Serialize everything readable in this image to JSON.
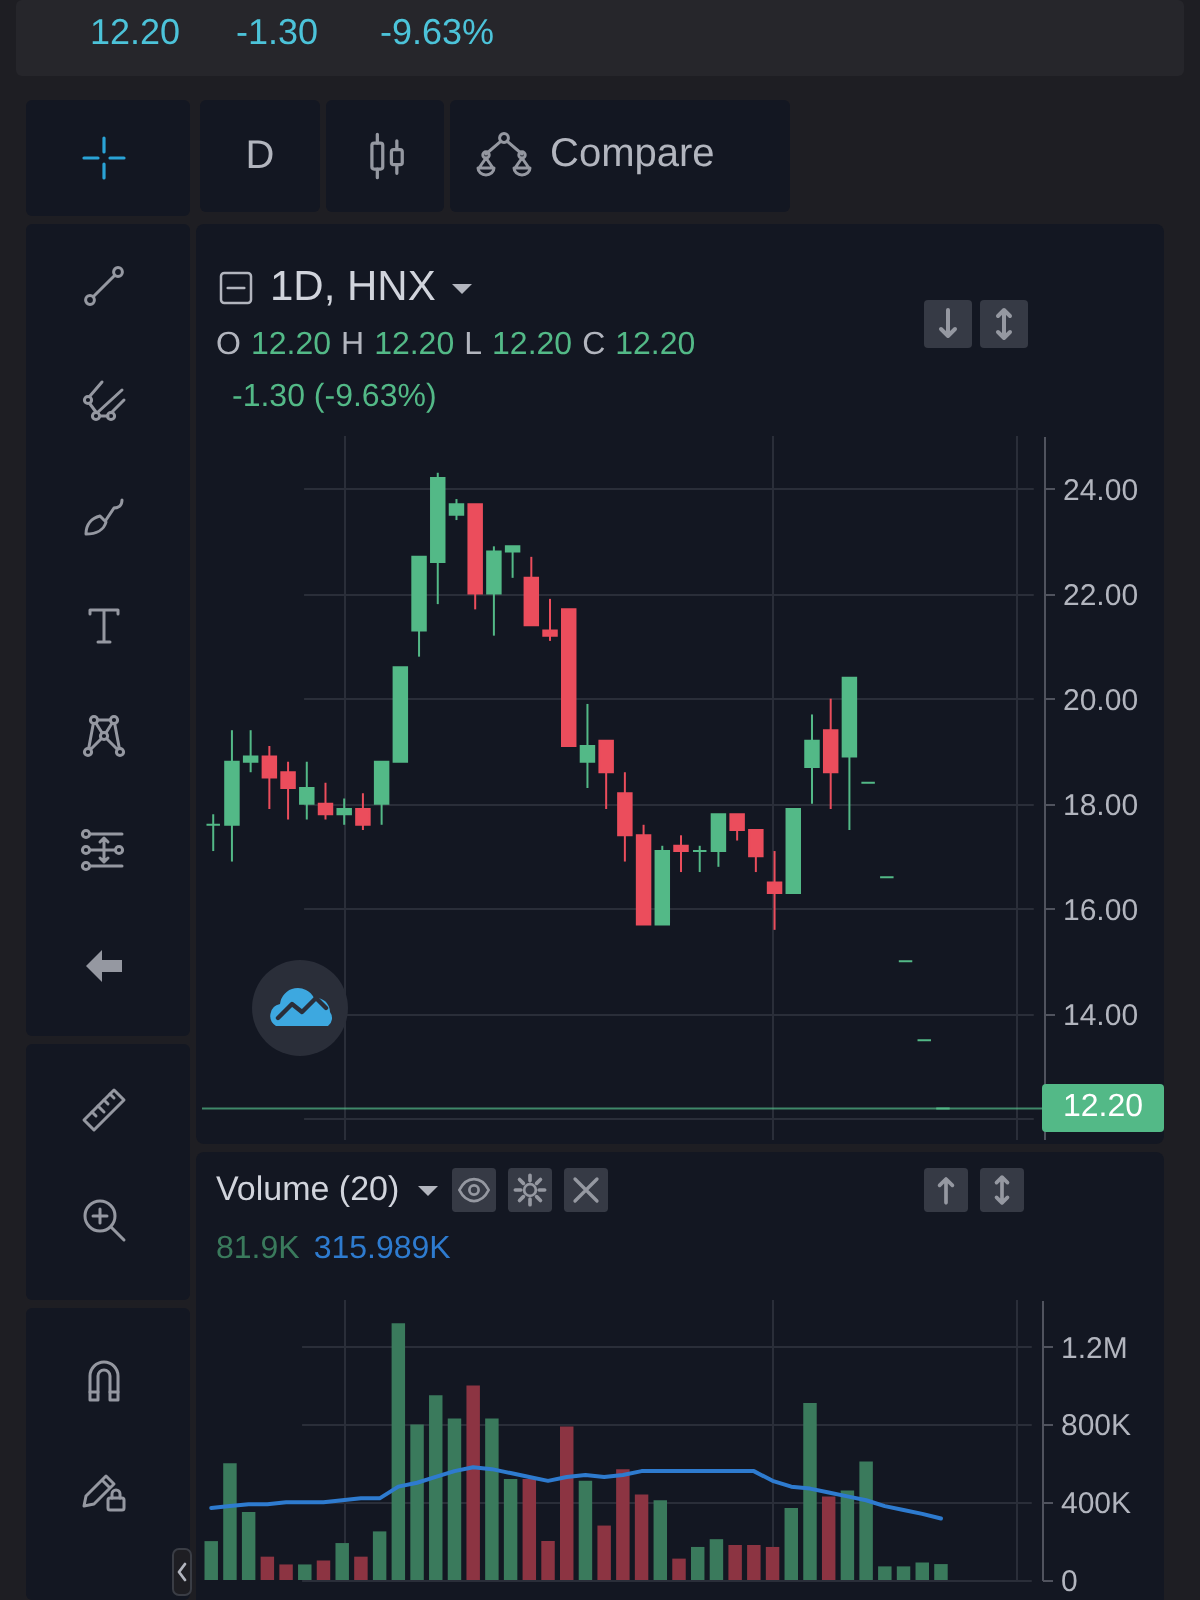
{
  "chart_data": [
    {
      "type": "other",
      "annotations": [
        "12.20",
        "-1.30",
        "-9.63%",
        "D",
        "Compare"
      ]
    },
    {
      "type": "candlestick",
      "title": "1D, HNX",
      "annotations": [
        "O 12.20 H 12.20 L 12.20 C 12.20",
        "-1.30 (-9.63%)"
      ],
      "categories": [
        null,
        null,
        null,
        null,
        null,
        null,
        null,
        null,
        null,
        null,
        null,
        null,
        null,
        null,
        null,
        null,
        null,
        null,
        null,
        null,
        null,
        null,
        null,
        null,
        null,
        null,
        null,
        null,
        null,
        null,
        null,
        null,
        null,
        null,
        null,
        null,
        null,
        null,
        null,
        null
      ],
      "ohlc": [
        [
          17.6,
          17.8,
          17.1,
          17.6
        ],
        [
          17.6,
          19.4,
          16.9,
          18.8
        ],
        [
          18.8,
          19.4,
          18.6,
          18.9
        ],
        [
          18.9,
          19.1,
          17.9,
          18.5
        ],
        [
          18.6,
          18.8,
          17.7,
          18.3
        ],
        [
          18.0,
          18.8,
          17.7,
          18.3
        ],
        [
          18.0,
          18.4,
          17.7,
          17.8
        ],
        [
          17.8,
          18.1,
          17.6,
          17.9
        ],
        [
          17.9,
          18.2,
          17.5,
          17.6
        ],
        [
          18.0,
          18.8,
          17.6,
          18.8
        ],
        [
          18.8,
          20.6,
          18.8,
          20.6
        ],
        [
          21.3,
          22.7,
          20.8,
          22.7
        ],
        [
          22.6,
          24.3,
          21.8,
          24.2
        ],
        [
          23.5,
          23.8,
          23.4,
          23.7
        ],
        [
          23.7,
          23.7,
          21.7,
          22.0
        ],
        [
          22.0,
          22.9,
          21.2,
          22.8
        ],
        [
          22.8,
          22.9,
          22.3,
          22.9
        ],
        [
          22.3,
          22.7,
          21.4,
          21.4
        ],
        [
          21.3,
          21.9,
          21.1,
          21.2
        ],
        [
          21.7,
          21.7,
          19.1,
          19.1
        ],
        [
          18.8,
          19.9,
          18.3,
          19.1
        ],
        [
          19.2,
          19.2,
          17.9,
          18.6
        ],
        [
          18.2,
          18.6,
          16.9,
          17.4
        ],
        [
          17.4,
          17.6,
          15.7,
          15.7
        ],
        [
          15.7,
          17.2,
          15.7,
          17.1
        ],
        [
          17.2,
          17.4,
          16.7,
          17.1
        ],
        [
          17.1,
          17.2,
          16.7,
          17.1
        ],
        [
          17.1,
          17.8,
          16.8,
          17.8
        ],
        [
          17.8,
          17.8,
          17.3,
          17.5
        ],
        [
          17.5,
          17.5,
          16.7,
          17.0
        ],
        [
          16.5,
          17.1,
          15.6,
          16.3
        ],
        [
          16.3,
          17.9,
          16.3,
          17.9
        ],
        [
          18.7,
          19.7,
          18.0,
          19.2
        ],
        [
          19.4,
          20.0,
          17.9,
          18.6
        ],
        [
          18.9,
          20.4,
          17.5,
          20.4
        ],
        [
          18.4,
          18.4,
          18.4,
          18.4
        ],
        [
          16.6,
          16.6,
          16.6,
          16.6
        ],
        [
          15.0,
          15.0,
          15.0,
          15.0
        ],
        [
          13.5,
          13.5,
          13.5,
          13.5
        ],
        [
          12.2,
          12.2,
          12.2,
          12.2
        ]
      ],
      "colors": [
        "#53b987",
        "#53b987",
        "#53b987",
        "#eb4d5c",
        "#eb4d5c",
        "#53b987",
        "#eb4d5c",
        "#53b987",
        "#eb4d5c",
        "#53b987",
        "#53b987",
        "#53b987",
        "#53b987",
        "#53b987",
        "#eb4d5c",
        "#53b987",
        "#53b987",
        "#eb4d5c",
        "#eb4d5c",
        "#eb4d5c",
        "#53b987",
        "#eb4d5c",
        "#eb4d5c",
        "#eb4d5c",
        "#53b987",
        "#eb4d5c",
        "#53b987",
        "#53b987",
        "#eb4d5c",
        "#eb4d5c",
        "#eb4d5c",
        "#53b987",
        "#53b987",
        "#eb4d5c",
        "#53b987",
        "#53b987",
        "#53b987",
        "#53b987",
        "#53b987",
        "#53b987"
      ],
      "ylim": [
        11.6,
        25.0
      ],
      "yticks": [
        {
          "value": 12,
          "label": null
        },
        {
          "value": 14,
          "label": "14.00"
        },
        {
          "value": 16,
          "label": "16.00"
        },
        {
          "value": 18,
          "label": "18.00"
        },
        {
          "value": 20,
          "label": "20.00"
        },
        {
          "value": 22,
          "label": "22.00"
        },
        {
          "value": 24,
          "label": "24.00"
        }
      ],
      "grid": true,
      "tick_labels": "y",
      "ref_lines": [
        {
          "axis": "y",
          "value": 12.2,
          "label": "12.20",
          "color": "#53b987"
        }
      ]
    },
    {
      "type": "bar",
      "title": "Volume (20)",
      "annotations": [
        "81.9K",
        "315.989K"
      ],
      "categories": [
        null,
        null,
        null,
        null,
        null,
        null,
        null,
        null,
        null,
        null,
        null,
        null,
        null,
        null,
        null,
        null,
        null,
        null,
        null,
        null,
        null,
        null,
        null,
        null,
        null,
        null,
        null,
        null,
        null,
        null,
        null,
        null,
        null,
        null,
        null,
        null,
        null,
        null,
        null,
        null
      ],
      "series": [
        {
          "colors": [
            "#3a7a5c",
            "#3a7a5c",
            "#3a7a5c",
            "#8c3442",
            "#8c3442",
            "#3a7a5c",
            "#8c3442",
            "#3a7a5c",
            "#8c3442",
            "#3a7a5c",
            "#3a7a5c",
            "#3a7a5c",
            "#3a7a5c",
            "#3a7a5c",
            "#8c3442",
            "#3a7a5c",
            "#3a7a5c",
            "#8c3442",
            "#8c3442",
            "#8c3442",
            "#3a7a5c",
            "#8c3442",
            "#8c3442",
            "#8c3442",
            "#3a7a5c",
            "#8c3442",
            "#3a7a5c",
            "#3a7a5c",
            "#8c3442",
            "#8c3442",
            "#8c3442",
            "#3a7a5c",
            "#3a7a5c",
            "#8c3442",
            "#3a7a5c",
            "#3a7a5c",
            "#3a7a5c",
            "#3a7a5c",
            "#3a7a5c",
            "#3a7a5c"
          ],
          "values": [
            200000,
            600000,
            350000,
            120000,
            80000,
            80000,
            100000,
            190000,
            120000,
            250000,
            1320000,
            800000,
            950000,
            830000,
            1000000,
            830000,
            520000,
            520000,
            200000,
            790000,
            510000,
            280000,
            570000,
            440000,
            410000,
            110000,
            170000,
            210000,
            180000,
            180000,
            170000,
            370000,
            910000,
            430000,
            460000,
            610000,
            70000,
            70000,
            90000,
            81900
          ]
        },
        {
          "type": "line",
          "color": "#2e7bcf",
          "values": [
            370000,
            380000,
            390000,
            390000,
            400000,
            400000,
            400000,
            410000,
            420000,
            420000,
            480000,
            500000,
            530000,
            560000,
            580000,
            570000,
            550000,
            530000,
            510000,
            530000,
            540000,
            530000,
            540000,
            560000,
            560000,
            560000,
            560000,
            560000,
            560000,
            560000,
            510000,
            480000,
            470000,
            450000,
            430000,
            410000,
            380000,
            360000,
            340000,
            315989
          ]
        }
      ],
      "ylim": [
        0,
        1440000
      ],
      "yticks": [
        0,
        {
          "value": 400000,
          "label": "400K"
        },
        {
          "value": 800000,
          "label": "800K"
        },
        {
          "value": 1200000,
          "label": "1.2M"
        }
      ],
      "grid": true,
      "tick_labels": "y"
    }
  ]
}
